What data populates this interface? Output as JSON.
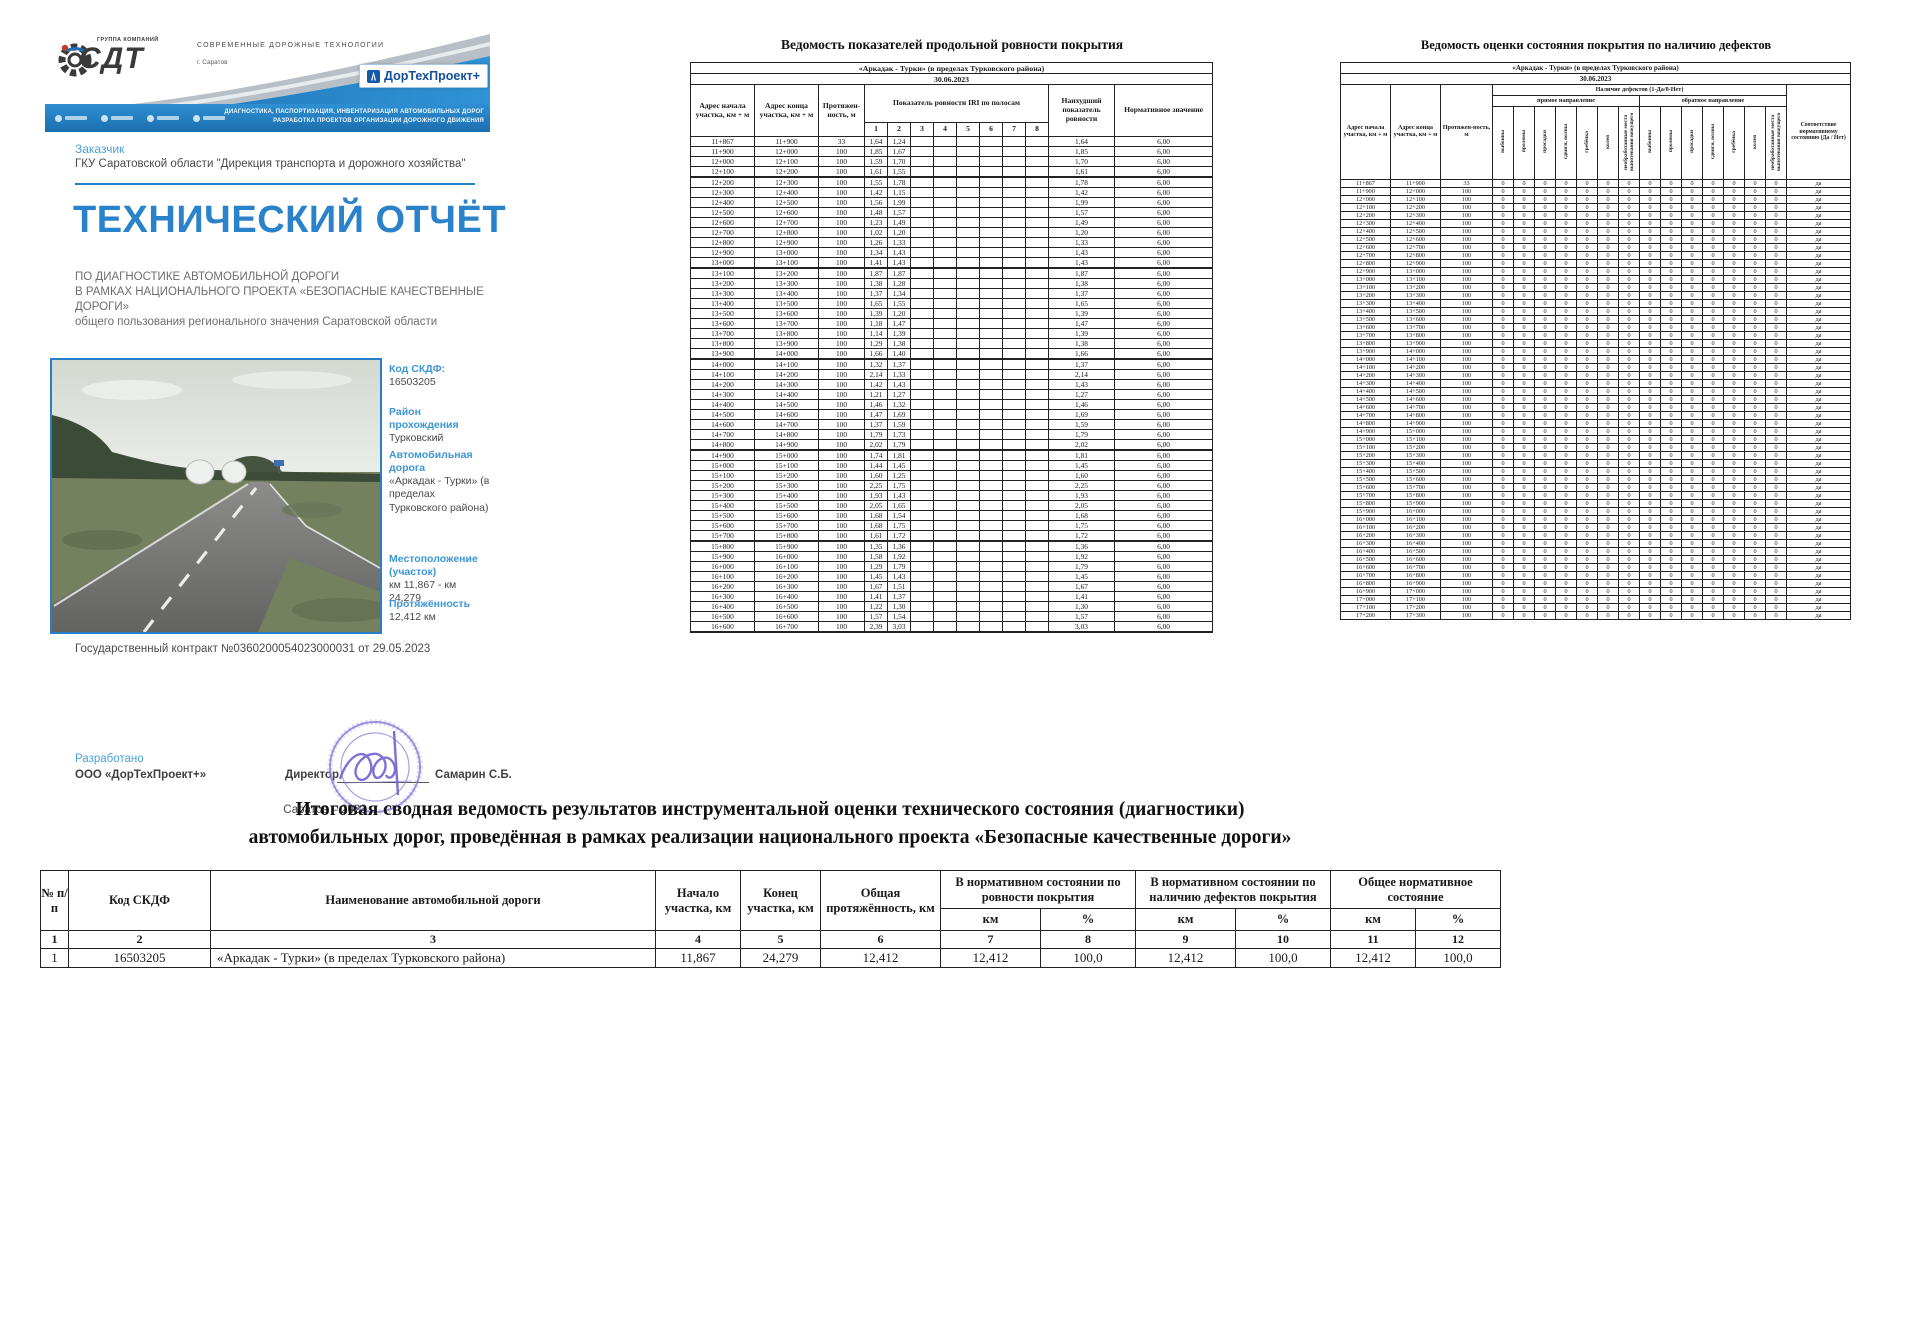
{
  "cover": {
    "brand": {
      "group_label": "ГРУППА КОМПАНИЙ",
      "logo_text": "СДТ",
      "tagline": "СОВРЕМЕННЫЕ ДОРОЖНЫЕ ТЕХНОЛОГИИ",
      "city": "г. Саратов",
      "product_badge": "ДорТехПроект+",
      "services_line1": "ДИАГНОСТИКА, ПАСПОРТИЗАЦИЯ, ИНВЕНТАРИЗАЦИЯ АВТОМОБИЛЬНЫХ ДОРОГ",
      "services_line2": "РАЗРАБОТКА ПРОЕКТОВ ОРГАНИЗАЦИИ ДОРОЖНОГО ДВИЖЕНИЯ"
    },
    "customer_label": "Заказчик",
    "customer_name": "ГКУ Саратовской области \"Дирекция транспорта и дорожного хозяйства\"",
    "title": "ТЕХНИЧЕСКИЙ ОТЧЁТ",
    "subtitle1": "ПО ДИАГНОСТИКЕ АВТОМОБИЛЬНОЙ ДОРОГИ",
    "subtitle2": "В РАМКАХ НАЦИОНАЛЬНОГО ПРОЕКТА «БЕЗОПАСНЫЕ КАЧЕСТВЕННЫЕ ДОРОГИ»",
    "subtitle3": "общего пользования регионального значения Саратовской области",
    "info": [
      {
        "label": "Код СКДФ:",
        "value": "16503205"
      },
      {
        "label": "Район прохождения",
        "value": "Турковский"
      },
      {
        "label": "Автомобильная дорога",
        "value": "«Аркадак - Турки» (в пределах Турковского района)"
      },
      {
        "label": "Местоположение (участок)",
        "value": "км 11,867 - км 24,279"
      },
      {
        "label": "Протяжённость",
        "value": "12,412 км"
      }
    ],
    "contract": "Государственный контракт №0360200054023000031 от 29.05.2023",
    "developed_label": "Разработано",
    "developer": "ООО «ДорТехПроект+»",
    "director_label": "Директор",
    "director_name": "Самарин С.Б.",
    "footer": "Саратов – 2023"
  },
  "roughness_table": {
    "title": "Ведомость показателей продольной ровности покрытия",
    "road": "«Аркадак - Турки» (в пределах Турковского района)",
    "date": "30.06.2023",
    "col_start": "Адрес начала участка, км + м",
    "col_end": "Адрес конца участка, км + м",
    "col_length": "Протяжен-ность, м",
    "lanes_header": "Показатель ровности IRI по полосам",
    "lane_numbers": [
      "1",
      "2",
      "3",
      "4",
      "5",
      "6",
      "7",
      "8"
    ],
    "col_worst": "Наихудший показатель ровности",
    "col_norm": "Нормативное значение",
    "norm_value": "6,00",
    "rows": [
      [
        "11+867",
        "11+900",
        "33",
        "1,64",
        "1,24",
        "1,64"
      ],
      [
        "11+900",
        "12+000",
        "100",
        "1,85",
        "1,67",
        "1,85"
      ],
      [
        "12+000",
        "12+100",
        "100",
        "1,59",
        "1,70",
        "1,70"
      ],
      [
        "12+100",
        "12+200",
        "100",
        "1,61",
        "1,55",
        "1,61"
      ],
      [
        "12+200",
        "12+300",
        "100",
        "1,55",
        "1,78",
        "1,78"
      ],
      [
        "12+300",
        "12+400",
        "100",
        "1,42",
        "1,15",
        "1,42"
      ],
      [
        "12+400",
        "12+500",
        "100",
        "1,56",
        "1,99",
        "1,99"
      ],
      [
        "12+500",
        "12+600",
        "100",
        "1,48",
        "1,57",
        "1,57"
      ],
      [
        "12+600",
        "12+700",
        "100",
        "1,23",
        "1,49",
        "1,49"
      ],
      [
        "12+700",
        "12+800",
        "100",
        "1,02",
        "1,20",
        "1,20"
      ],
      [
        "12+800",
        "12+900",
        "100",
        "1,26",
        "1,33",
        "1,33"
      ],
      [
        "12+900",
        "13+000",
        "100",
        "1,34",
        "1,43",
        "1,43"
      ],
      [
        "13+000",
        "13+100",
        "100",
        "1,41",
        "1,43",
        "1,43"
      ],
      [
        "13+100",
        "13+200",
        "100",
        "1,87",
        "1,87",
        "1,87"
      ],
      [
        "13+200",
        "13+300",
        "100",
        "1,38",
        "1,28",
        "1,38"
      ],
      [
        "13+300",
        "13+400",
        "100",
        "1,37",
        "1,34",
        "1,37"
      ],
      [
        "13+400",
        "13+500",
        "100",
        "1,65",
        "1,55",
        "1,65"
      ],
      [
        "13+500",
        "13+600",
        "100",
        "1,39",
        "1,20",
        "1,39"
      ],
      [
        "13+600",
        "13+700",
        "100",
        "1,18",
        "1,47",
        "1,47"
      ],
      [
        "13+700",
        "13+800",
        "100",
        "1,14",
        "1,39",
        "1,39"
      ],
      [
        "13+800",
        "13+900",
        "100",
        "1,29",
        "1,38",
        "1,38"
      ],
      [
        "13+900",
        "14+000",
        "100",
        "1,66",
        "1,40",
        "1,66"
      ],
      [
        "14+000",
        "14+100",
        "100",
        "1,32",
        "1,37",
        "1,37"
      ],
      [
        "14+100",
        "14+200",
        "100",
        "2,14",
        "1,33",
        "2,14"
      ],
      [
        "14+200",
        "14+300",
        "100",
        "1,42",
        "1,43",
        "1,43"
      ],
      [
        "14+300",
        "14+400",
        "100",
        "1,21",
        "1,27",
        "1,27"
      ],
      [
        "14+400",
        "14+500",
        "100",
        "1,46",
        "1,32",
        "1,46"
      ],
      [
        "14+500",
        "14+600",
        "100",
        "1,47",
        "1,69",
        "1,69"
      ],
      [
        "14+600",
        "14+700",
        "100",
        "1,37",
        "1,59",
        "1,59"
      ],
      [
        "14+700",
        "14+800",
        "100",
        "1,79",
        "1,73",
        "1,79"
      ],
      [
        "14+800",
        "14+900",
        "100",
        "2,02",
        "1,79",
        "2,02"
      ],
      [
        "14+900",
        "15+000",
        "100",
        "1,74",
        "1,81",
        "1,81"
      ],
      [
        "15+000",
        "15+100",
        "100",
        "1,44",
        "1,45",
        "1,45"
      ],
      [
        "15+100",
        "15+200",
        "100",
        "1,60",
        "1,25",
        "1,60"
      ],
      [
        "15+200",
        "15+300",
        "100",
        "2,25",
        "1,75",
        "2,25"
      ],
      [
        "15+300",
        "15+400",
        "100",
        "1,93",
        "1,43",
        "1,93"
      ],
      [
        "15+400",
        "15+500",
        "100",
        "2,05",
        "1,65",
        "2,05"
      ],
      [
        "15+500",
        "15+600",
        "100",
        "1,68",
        "1,54",
        "1,68"
      ],
      [
        "15+600",
        "15+700",
        "100",
        "1,68",
        "1,75",
        "1,75"
      ],
      [
        "15+700",
        "15+800",
        "100",
        "1,61",
        "1,72",
        "1,72"
      ],
      [
        "15+800",
        "15+900",
        "100",
        "1,35",
        "1,36",
        "1,36"
      ],
      [
        "15+900",
        "16+000",
        "100",
        "1,58",
        "1,92",
        "1,92"
      ],
      [
        "16+000",
        "16+100",
        "100",
        "1,29",
        "1,79",
        "1,79"
      ],
      [
        "16+100",
        "16+200",
        "100",
        "1,45",
        "1,43",
        "1,45"
      ],
      [
        "16+200",
        "16+300",
        "100",
        "1,67",
        "1,51",
        "1,67"
      ],
      [
        "16+300",
        "16+400",
        "100",
        "1,41",
        "1,37",
        "1,41"
      ],
      [
        "16+400",
        "16+500",
        "100",
        "1,22",
        "1,30",
        "1,30"
      ],
      [
        "16+500",
        "16+600",
        "100",
        "1,57",
        "1,54",
        "1,57"
      ],
      [
        "16+600",
        "16+700",
        "100",
        "2,39",
        "3,03",
        "3,03"
      ]
    ]
  },
  "defects_table": {
    "title": "Ведомость оценки состояния покрытия по наличию дефектов",
    "road": "«Аркадак - Турки» (в пределах Турковского района)",
    "date": "30.06.2023",
    "col_start": "Адрес начала участка, км + м",
    "col_end": "Адрес конца участка, км + м",
    "col_length": "Протяжен-ность, м",
    "presence_header": "Наличие дефектов (1-Да/0-Нет)",
    "dir_forward": "прямое направление",
    "dir_backward": "обратное направление",
    "defect_types": [
      "выбоины",
      "проломы",
      "просадки",
      "сдвиги, волны",
      "гребёнка",
      "колея",
      "необработанные места выпотевания вяжущего"
    ],
    "col_compliance": "Соответствие нормативному состоянию (Да / Нет)",
    "zero_value": "0",
    "yes_value": "да",
    "segments": [
      [
        "11+867",
        "11+900",
        "33"
      ],
      [
        "11+900",
        "12+000",
        "100"
      ],
      [
        "12+000",
        "12+100",
        "100"
      ],
      [
        "12+100",
        "12+200",
        "100"
      ],
      [
        "12+200",
        "12+300",
        "100"
      ],
      [
        "12+300",
        "12+400",
        "100"
      ],
      [
        "12+400",
        "12+500",
        "100"
      ],
      [
        "12+500",
        "12+600",
        "100"
      ],
      [
        "12+600",
        "12+700",
        "100"
      ],
      [
        "12+700",
        "12+800",
        "100"
      ],
      [
        "12+800",
        "12+900",
        "100"
      ],
      [
        "12+900",
        "13+000",
        "100"
      ],
      [
        "13+000",
        "13+100",
        "100"
      ],
      [
        "13+100",
        "13+200",
        "100"
      ],
      [
        "13+200",
        "13+300",
        "100"
      ],
      [
        "13+300",
        "13+400",
        "100"
      ],
      [
        "13+400",
        "13+500",
        "100"
      ],
      [
        "13+500",
        "13+600",
        "100"
      ],
      [
        "13+600",
        "13+700",
        "100"
      ],
      [
        "13+700",
        "13+800",
        "100"
      ],
      [
        "13+800",
        "13+900",
        "100"
      ],
      [
        "13+900",
        "14+000",
        "100"
      ],
      [
        "14+000",
        "14+100",
        "100"
      ],
      [
        "14+100",
        "14+200",
        "100"
      ],
      [
        "14+200",
        "14+300",
        "100"
      ],
      [
        "14+300",
        "14+400",
        "100"
      ],
      [
        "14+400",
        "14+500",
        "100"
      ],
      [
        "14+500",
        "14+600",
        "100"
      ],
      [
        "14+600",
        "14+700",
        "100"
      ],
      [
        "14+700",
        "14+800",
        "100"
      ],
      [
        "14+800",
        "14+900",
        "100"
      ],
      [
        "14+900",
        "15+000",
        "100"
      ],
      [
        "15+000",
        "15+100",
        "100"
      ],
      [
        "15+100",
        "15+200",
        "100"
      ],
      [
        "15+200",
        "15+300",
        "100"
      ],
      [
        "15+300",
        "15+400",
        "100"
      ],
      [
        "15+400",
        "15+500",
        "100"
      ],
      [
        "15+500",
        "15+600",
        "100"
      ],
      [
        "15+600",
        "15+700",
        "100"
      ],
      [
        "15+700",
        "15+800",
        "100"
      ],
      [
        "15+800",
        "15+900",
        "100"
      ],
      [
        "15+900",
        "16+000",
        "100"
      ],
      [
        "16+000",
        "16+100",
        "100"
      ],
      [
        "16+100",
        "16+200",
        "100"
      ],
      [
        "16+200",
        "16+300",
        "100"
      ],
      [
        "16+300",
        "16+400",
        "100"
      ],
      [
        "16+400",
        "16+500",
        "100"
      ],
      [
        "16+500",
        "16+600",
        "100"
      ],
      [
        "16+600",
        "16+700",
        "100"
      ],
      [
        "16+700",
        "16+800",
        "100"
      ],
      [
        "16+800",
        "16+900",
        "100"
      ],
      [
        "16+900",
        "17+000",
        "100"
      ],
      [
        "17+000",
        "17+100",
        "100"
      ],
      [
        "17+100",
        "17+200",
        "100"
      ],
      [
        "17+200",
        "17+300",
        "100"
      ]
    ]
  },
  "summary": {
    "title_line1": "Итоговая сводная ведомость результатов инструментальной оценки технического состояния (диагностики)",
    "title_line2": "автомобильных дорог, проведённая в рамках реализации национального проекта «Безопасные качественные дороги»",
    "col_num": "№ п/п",
    "col_code": "Код СКДФ",
    "col_name": "Наименование автомобильной дороги",
    "col_begin": "Начало участка, км",
    "col_finish": "Конец участка, км",
    "col_total": "Общая протяжённость, км",
    "grp_rough": "В нормативном состоянии по ровности покрытия",
    "grp_defects": "В нормативном состоянии по наличию дефектов покрытия",
    "grp_overall": "Общее нормативное состояние",
    "sub_km": "км",
    "sub_pct": "%",
    "column_numbers": [
      "1",
      "2",
      "3",
      "4",
      "5",
      "6",
      "7",
      "8",
      "9",
      "10",
      "11",
      "12"
    ],
    "data_row": [
      "1",
      "16503205",
      "«Аркадак - Турки» (в пределах Турковского района)",
      "11,867",
      "24,279",
      "12,412",
      "12,412",
      "100,0",
      "12,412",
      "100,0",
      "12,412",
      "100,0"
    ]
  }
}
